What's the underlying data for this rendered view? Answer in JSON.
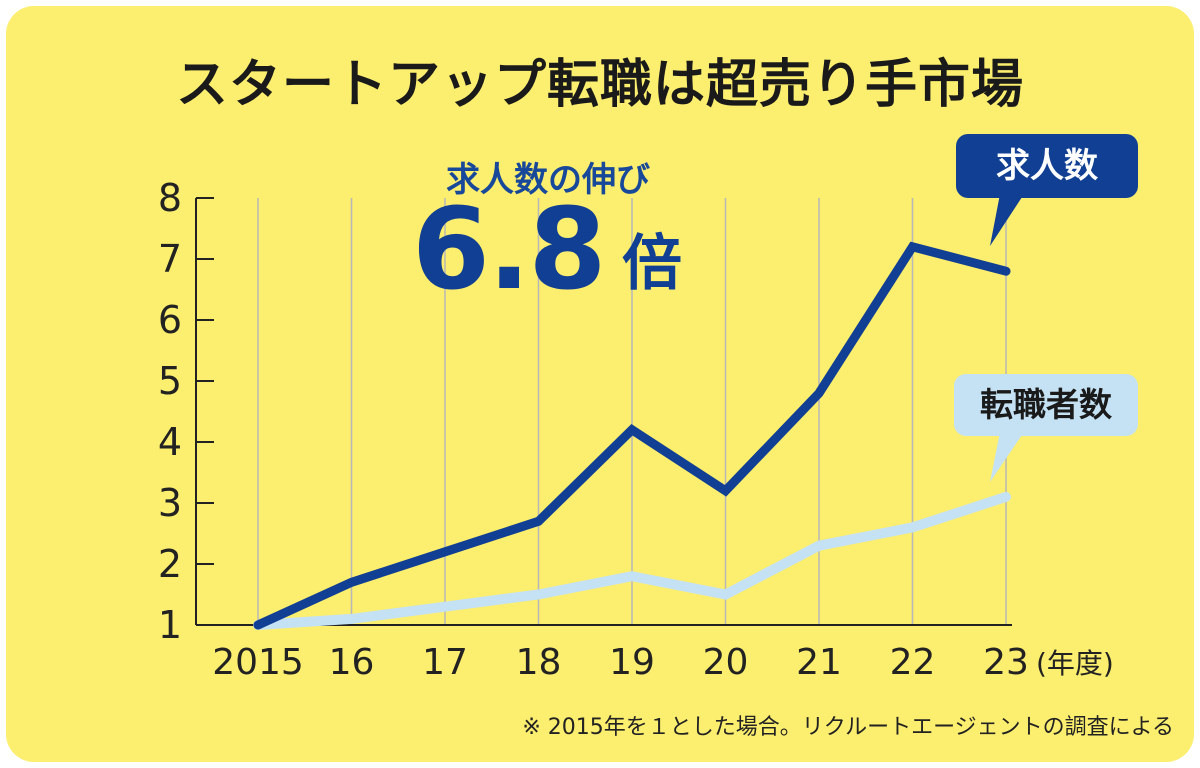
{
  "chart_data": {
    "type": "line",
    "title": "スタートアップ転職は超売り手市場",
    "x": [
      "2015",
      "16",
      "17",
      "18",
      "19",
      "20",
      "21",
      "22",
      "23"
    ],
    "x_unit": "(年度)",
    "ylim": [
      1,
      8
    ],
    "yticks": [
      "1",
      "2",
      "3",
      "4",
      "5",
      "6",
      "7",
      "8"
    ],
    "grid": "vertical",
    "series": [
      {
        "name": "求人数",
        "color": "#113f93",
        "values": [
          1.0,
          1.7,
          2.2,
          2.7,
          4.2,
          3.2,
          4.8,
          7.2,
          6.8
        ]
      },
      {
        "name": "転職者数",
        "color": "#c5e2f4",
        "values": [
          1.0,
          1.1,
          1.3,
          1.5,
          1.8,
          1.5,
          2.3,
          2.6,
          3.1
        ]
      }
    ],
    "annotation": {
      "label": "求人数の伸び",
      "value": "6.8",
      "unit": "倍"
    },
    "note": "※ 2015年を１とした場合。リクルートエージェントの調査による"
  },
  "colors": {
    "background": "#fcee6e",
    "grid": "#b8b8b8",
    "axis": "#222222"
  }
}
